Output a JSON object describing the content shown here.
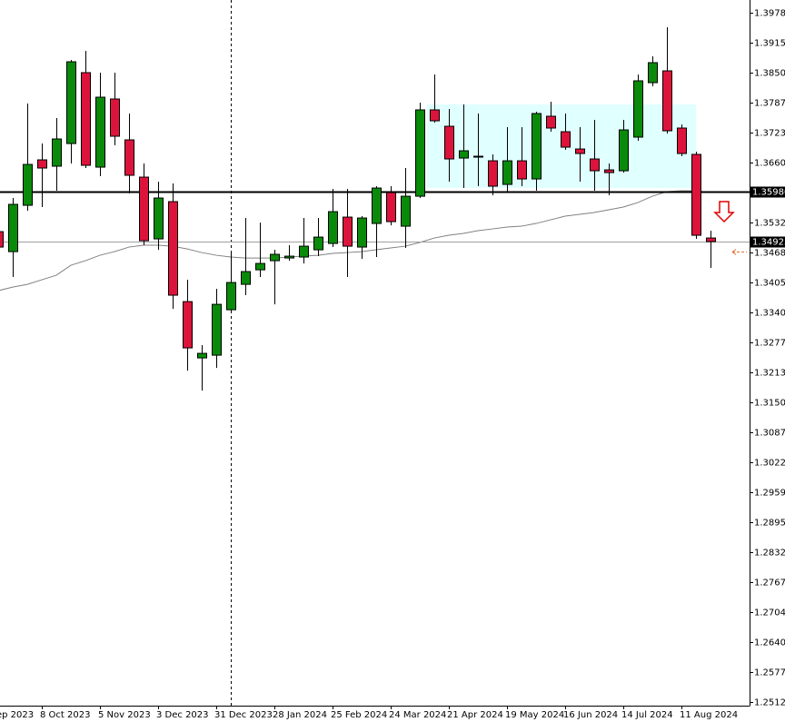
{
  "chart_data": {
    "type": "candlestick",
    "categories": [
      "ep 2023",
      null,
      null,
      "8 Oct 2023",
      null,
      null,
      null,
      "5 Nov 2023",
      null,
      null,
      null,
      "3 Dec 2023",
      null,
      null,
      null,
      "31 Dec 2023",
      null,
      null,
      null,
      "28 Jan 2024",
      null,
      null,
      null,
      "25 Feb 2024",
      null,
      null,
      null,
      "24 Mar 2024",
      null,
      null,
      null,
      "21 Apr 2024",
      null,
      null,
      null,
      "19 May 2024",
      null,
      null,
      null,
      "16 Jun 2024",
      null,
      null,
      null,
      "14 Jul 2024",
      null,
      null,
      null,
      "11 Aug 2024",
      null,
      null
    ],
    "open": [
      1.35126,
      1.34701,
      1.35686,
      1.36652,
      1.36517,
      1.36999,
      1.38506,
      1.36497,
      1.37946,
      1.37077,
      1.36285,
      1.34972,
      1.35764,
      1.33639,
      1.32442,
      1.325,
      1.33466,
      1.34006,
      1.34315,
      1.34508,
      1.34566,
      1.34586,
      1.3474,
      1.34875,
      1.35435,
      1.34798,
      1.353,
      1.35957,
      1.35242,
      1.35879,
      1.37714,
      1.37366,
      1.3669,
      1.36729,
      1.36632,
      1.3613,
      1.36632,
      1.36246,
      1.37579,
      1.3725,
      1.36883,
      1.36671,
      1.36439,
      1.3642,
      1.37135,
      1.38293,
      1.38544,
      1.37328,
      1.36768,
      1.34991
    ],
    "high": [
      1.35223,
      1.35841,
      1.37849,
      1.36999,
      1.3754,
      1.38776,
      1.38969,
      1.38506,
      1.38506,
      1.37637,
      1.36575,
      1.36188,
      1.3615,
      1.34103,
      1.32713,
      1.3391,
      1.34682,
      1.35416,
      1.35319,
      1.3474,
      1.34837,
      1.35416,
      1.35416,
      1.36034,
      1.36034,
      1.35455,
      1.36092,
      1.36092,
      1.36478,
      1.37868,
      1.38467,
      1.37733,
      1.3783,
      1.37637,
      1.36768,
      1.37347,
      1.37347,
      1.37675,
      1.37888,
      1.37637,
      1.37347,
      1.37501,
      1.36575,
      1.37501,
      1.38467,
      1.38853,
      1.39471,
      1.37405,
      1.36826,
      1.35146
    ],
    "low": [
      1.34682,
      1.34161,
      1.3557,
      1.35648,
      1.35995,
      1.36575,
      1.36478,
      1.36304,
      1.36961,
      1.35937,
      1.34837,
      1.3474,
      1.33485,
      1.32172,
      1.31747,
      1.3223,
      1.33388,
      1.33775,
      1.34161,
      1.33581,
      1.34508,
      1.3445,
      1.34605,
      1.34798,
      1.34161,
      1.34547,
      1.34586,
      1.35261,
      1.34779,
      1.35841,
      1.37443,
      1.36188,
      1.36053,
      1.36092,
      1.35899,
      1.35957,
      1.36092,
      1.35995,
      1.3725,
      1.36864,
      1.36188,
      1.35995,
      1.35899,
      1.36381,
      1.37057,
      1.38216,
      1.37212,
      1.36729,
      1.34972,
      1.34354
    ],
    "close": [
      1.34798,
      1.35706,
      1.36555,
      1.36478,
      1.37096,
      1.38737,
      1.36536,
      1.37984,
      1.37154,
      1.36324,
      1.34933,
      1.35841,
      1.33775,
      1.32655,
      1.32539,
      1.33581,
      1.34045,
      1.34277,
      1.3445,
      1.34644,
      1.34605,
      1.34817,
      1.3501,
      1.35551,
      1.34817,
      1.35416,
      1.36053,
      1.35339,
      1.35879,
      1.37714,
      1.37482,
      1.36671,
      1.36845,
      1.36729,
      1.36092,
      1.36632,
      1.36246,
      1.37637,
      1.37328,
      1.36922,
      1.36787,
      1.3642,
      1.36381,
      1.37289,
      1.38332,
      1.38718,
      1.3727,
      1.36787,
      1.35049,
      1.34914
    ],
    "bull_color": "#0a8a0a",
    "bear_color": "#dc143c",
    "ma": {
      "color": "#808080",
      "values": [
        1.33871,
        1.33948,
        1.34006,
        1.34103,
        1.34199,
        1.34412,
        1.34508,
        1.34624,
        1.34701,
        1.34798,
        1.34837,
        1.34837,
        1.34817,
        1.34759,
        1.34682,
        1.34624,
        1.34586,
        1.34566,
        1.34566,
        1.34566,
        1.34586,
        1.34605,
        1.34624,
        1.34663,
        1.34682,
        1.34701,
        1.3474,
        1.34779,
        1.34817,
        1.34895,
        1.34991,
        1.35049,
        1.35088,
        1.35146,
        1.35184,
        1.35223,
        1.35242,
        1.353,
        1.35377,
        1.35455,
        1.35493,
        1.35532,
        1.3559,
        1.35648,
        1.35744,
        1.35879,
        1.35976,
        1.35995,
        1.35995,
        1.35957
      ]
    },
    "zone": {
      "high": 1.3783,
      "low": 1.36053,
      "color": "#e0ffff"
    },
    "levels": [
      {
        "value": 1.3598,
        "label": "1.35980",
        "color": "#000000"
      },
      {
        "value": 1.34923,
        "color": "#a0a0a0"
      }
    ],
    "ylim": [
      1.2505,
      1.4005
    ],
    "yticks": [
      {
        "value": 1.3978,
        "label": "1.39780"
      },
      {
        "value": 1.3915,
        "label": "1.39150"
      },
      1.38505,
      1.37875,
      {
        "value": 1.3723,
        "label": "1.37230"
      },
      {
        "value": 1.366,
        "label": "1.36600"
      },
      1.35325,
      {
        "value": 1.3468,
        "label": "1.34680"
      },
      {
        "value": 1.3405,
        "label": "1.34050"
      },
      1.33405,
      1.32775,
      {
        "value": 1.3213,
        "label": "1.32130"
      },
      {
        "value": 1.315,
        "label": "1.31500"
      },
      {
        "value": 1.3087,
        "label": "1.30870"
      },
      1.30225,
      1.29595,
      {
        "value": 1.2895,
        "label": "1.28950"
      },
      {
        "value": 1.2832,
        "label": "1.28320"
      },
      1.27675,
      1.27045,
      {
        "value": 1.264,
        "label": "1.26400"
      },
      {
        "value": 1.2577,
        "label": "1.25770"
      },
      1.25125
    ]
  }
}
